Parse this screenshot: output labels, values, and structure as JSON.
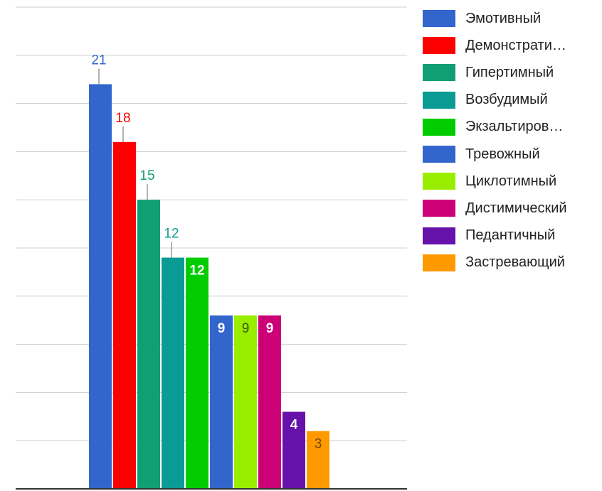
{
  "chart_data": {
    "type": "bar",
    "title": "",
    "xlabel": "",
    "ylabel": "",
    "ylim": [
      0,
      25
    ],
    "grid": true,
    "legend_position": "right",
    "series": [
      {
        "name": "Эмотивный",
        "value": 21,
        "color": "#3366cc",
        "label_style": "above"
      },
      {
        "name": "Демонстрати…",
        "value": 18,
        "color": "#ff0000",
        "label_style": "above"
      },
      {
        "name": "Гипертимный",
        "value": 15,
        "color": "#109e73",
        "label_style": "above"
      },
      {
        "name": "Возбудимый",
        "value": 12,
        "color": "#0b9b95",
        "label_style": "above"
      },
      {
        "name": "Экзальтиров…",
        "value": 12,
        "color": "#00cc00",
        "label_style": "inside"
      },
      {
        "name": "Тревожный",
        "value": 9,
        "color": "#3366cc",
        "label_style": "inside"
      },
      {
        "name": "Циклотимный",
        "value": 9,
        "color": "#99ee00",
        "label_style": "inside"
      },
      {
        "name": "Дистимический",
        "value": 9,
        "color": "#cc0077",
        "label_style": "inside"
      },
      {
        "name": "Педантичный",
        "value": 4,
        "color": "#6611aa",
        "label_style": "inside"
      },
      {
        "name": "Застревающий",
        "value": 3,
        "color": "#ff9900",
        "label_style": "inside"
      }
    ]
  }
}
